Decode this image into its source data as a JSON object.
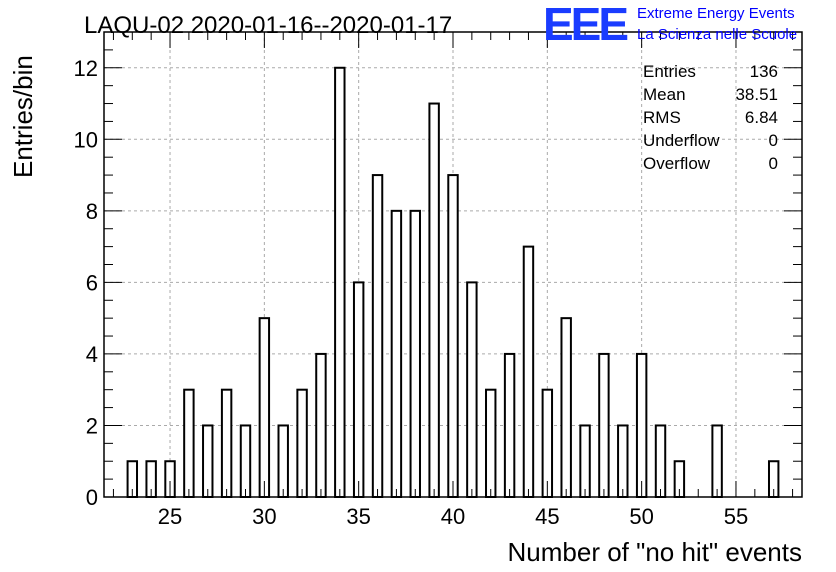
{
  "chart_data": {
    "type": "bar",
    "title": "LAQU-02 2020-01-16--2020-01-17",
    "xlabel": "Number of \"no hit\" events",
    "ylabel": "Entries/bin",
    "xlim": [
      21.5,
      58.5
    ],
    "ylim": [
      0,
      13
    ],
    "bin_width": 0.5,
    "grid": true,
    "x_ticks": [
      25,
      30,
      35,
      40,
      45,
      50,
      55
    ],
    "y_ticks": [
      0,
      2,
      4,
      6,
      8,
      10,
      12
    ],
    "x_tick_labels": [
      "25",
      "30",
      "35",
      "40",
      "45",
      "50",
      "55"
    ],
    "y_tick_labels": [
      "0",
      "2",
      "4",
      "6",
      "8",
      "10",
      "12"
    ],
    "bins": [
      {
        "x": 23,
        "y": 1
      },
      {
        "x": 24,
        "y": 1
      },
      {
        "x": 25,
        "y": 1
      },
      {
        "x": 26,
        "y": 3
      },
      {
        "x": 27,
        "y": 2
      },
      {
        "x": 28,
        "y": 3
      },
      {
        "x": 29,
        "y": 2
      },
      {
        "x": 30,
        "y": 5
      },
      {
        "x": 31,
        "y": 2
      },
      {
        "x": 32,
        "y": 3
      },
      {
        "x": 33,
        "y": 4
      },
      {
        "x": 34,
        "y": 12
      },
      {
        "x": 35,
        "y": 6
      },
      {
        "x": 36,
        "y": 9
      },
      {
        "x": 37,
        "y": 8
      },
      {
        "x": 38,
        "y": 8
      },
      {
        "x": 39,
        "y": 11
      },
      {
        "x": 40,
        "y": 9
      },
      {
        "x": 41,
        "y": 6
      },
      {
        "x": 42,
        "y": 3
      },
      {
        "x": 43,
        "y": 4
      },
      {
        "x": 44,
        "y": 7
      },
      {
        "x": 45,
        "y": 3
      },
      {
        "x": 46,
        "y": 5
      },
      {
        "x": 47,
        "y": 2
      },
      {
        "x": 48,
        "y": 4
      },
      {
        "x": 49,
        "y": 2
      },
      {
        "x": 50,
        "y": 4
      },
      {
        "x": 51,
        "y": 2
      },
      {
        "x": 52,
        "y": 1
      },
      {
        "x": 54,
        "y": 2
      },
      {
        "x": 57,
        "y": 1
      }
    ],
    "stats": [
      {
        "label": "Entries",
        "value": "136"
      },
      {
        "label": "Mean",
        "value": "38.51"
      },
      {
        "label": "RMS",
        "value": "6.84"
      },
      {
        "label": "Underflow",
        "value": "0"
      },
      {
        "label": "Overflow",
        "value": "0"
      }
    ],
    "stats_position": "top-right"
  },
  "branding": {
    "logo": "EEE",
    "line1": "Extreme Energy Events",
    "line2": "La Scienza nelle Scuole",
    "color": "#0000ff"
  }
}
